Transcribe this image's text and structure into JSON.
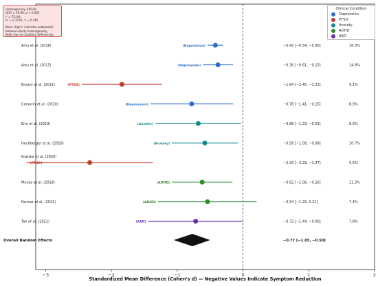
{
  "heterogeneity": {
    "lines": [
      "Heterogeneity (HIGH):",
      "Q(9) = 36.66, p < 0.001",
      "I² = 75.4%",
      "τ² = 0.1191, τ = 0.345",
      "",
      "Note: High I² indicates substantial",
      "between-study heterogeneity,",
      "likely due to condition differences."
    ]
  },
  "legend": {
    "title": "Clinical Condition",
    "items": [
      {
        "label": "Depression",
        "color": "#2f6fca"
      },
      {
        "label": "PTSD",
        "color": "#c23b2e"
      },
      {
        "label": "Anxiety",
        "color": "#12898c"
      },
      {
        "label": "ADHD",
        "color": "#2e8b2e"
      },
      {
        "label": "ASD",
        "color": "#6a2fa5"
      }
    ]
  },
  "chart_data": {
    "type": "forest",
    "xlabel": "Standardized Mean Difference (Cohen's d) — Negative Values Indicate Symptom Reduction",
    "xlim": [
      -3.15,
      2.0
    ],
    "xticks": [
      "−3",
      "−2",
      "−1",
      "0",
      "1",
      "2"
    ],
    "xtick_values": [
      -3,
      -2,
      -1,
      0,
      1,
      2
    ],
    "reference_line": 0,
    "studies": [
      {
        "study": "Arns et al. (2016)",
        "condition": "Depression",
        "tag": "(Depression)",
        "color": "#2f6fca",
        "d": -0.42,
        "lo": -0.54,
        "hi": -0.3,
        "ci_text": "−0.42 [−0.54, −0.30]",
        "weight": "16.0%"
      },
      {
        "study": "Arns et al. (2015)",
        "condition": "Depression",
        "tag": "(Depression)",
        "color": "#2f6fca",
        "d": -0.38,
        "lo": -0.61,
        "hi": -0.15,
        "ci_text": "−0.38 [−0.61, −0.15]",
        "weight": "14.8%"
      },
      {
        "study": "Bryant et al. (2021)",
        "condition": "PTSD",
        "tag": "(PTSD)",
        "color": "#c23b2e",
        "d": -1.84,
        "lo": -2.45,
        "hi": -1.23,
        "ci_text": "−1.84 [−2.45, −1.23]",
        "weight": "9.1%"
      },
      {
        "study": "Camarin et al. (2020)",
        "condition": "Depression",
        "tag": "(Depression)",
        "color": "#2f6fca",
        "d": -0.78,
        "lo": -1.41,
        "hi": -0.15,
        "ci_text": "−0.78 [−1.41, −0.15]",
        "weight": "8.9%"
      },
      {
        "study": "Erin et al. (2019)",
        "condition": "Anxiety",
        "tag": "(Anxiety)",
        "color": "#12898c",
        "d": -0.68,
        "lo": -1.33,
        "hi": -0.03,
        "ci_text": "−0.68 [−1.33, −0.03]",
        "weight": "8.6%"
      },
      {
        "study": "Hochberger et al. (2018)",
        "condition": "Anxiety",
        "tag": "(Anxiety)",
        "color": "#12898c",
        "d": -0.58,
        "lo": -1.08,
        "hi": -0.08,
        "ci_text": "−0.58 [−1.08, −0.08]",
        "weight": "10.7%"
      },
      {
        "study": "Kratzke et al. (2020)",
        "condition": "PTSD",
        "tag": "(PTSD)",
        "color": "#c23b2e",
        "d": -2.33,
        "lo": -3.29,
        "hi": -1.37,
        "ci_text": "−2.33 [−3.29, −1.37]",
        "weight": "5.5%",
        "label_above": true
      },
      {
        "study": "Munas et al. (2018)",
        "condition": "ADHD",
        "tag": "(ADHD)",
        "color": "#2e8b2e",
        "d": -0.62,
        "lo": -1.08,
        "hi": -0.16,
        "ci_text": "−0.62 [−1.08, −0.16]",
        "weight": "11.3%"
      },
      {
        "study": "Parmar et al. (2021)",
        "condition": "ADHD",
        "tag": "(ADHD)",
        "color": "#2e8b2e",
        "d": -0.54,
        "lo": -1.29,
        "hi": 0.21,
        "ci_text": "−0.54 [−1.29, 0.21]",
        "weight": "7.4%"
      },
      {
        "study": "Tan et al. (2021)",
        "condition": "ASD",
        "tag": "(ASD)",
        "color": "#6a2fa5",
        "d": -0.72,
        "lo": -1.44,
        "hi": 0.0,
        "ci_text": "−0.72 [−1.44, −0.00]",
        "weight": "7.8%"
      }
    ],
    "overall": {
      "label": "Overall Random Effects",
      "d": -0.77,
      "lo": -1.05,
      "hi": -0.5,
      "ci_text": "−0.77 [−1.05, −0.50]",
      "color": "#111111"
    }
  }
}
